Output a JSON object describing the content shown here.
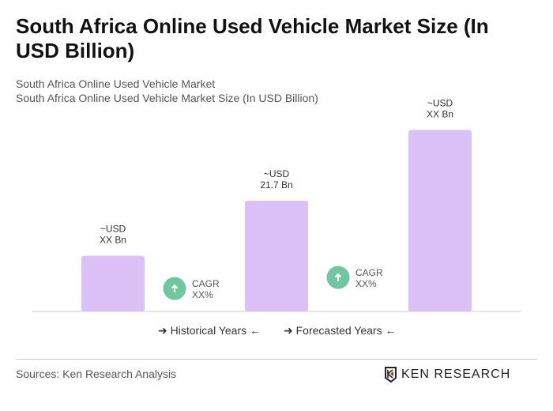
{
  "title": "South Africa Online Used Vehicle Market Size (In USD Billion)",
  "subtitle1": "South Africa Online Used Vehicle Market",
  "subtitle2": "South Africa Online Used Vehicle Market Size (In USD Billion)",
  "chart_data": {
    "type": "bar",
    "values": [
      10.9,
      21.7,
      35.6
    ],
    "data_labels": [
      [
        "~USD",
        "XX Bn"
      ],
      [
        "~USD",
        "21.7 Bn"
      ],
      [
        "~USD",
        "XX Bn"
      ]
    ],
    "bar_color": "#dcc1f7",
    "cagr": [
      {
        "label": "CAGR",
        "value": "XX%"
      },
      {
        "label": "CAGR",
        "value": "XX%"
      }
    ],
    "cagr_color": "#6fc7a1",
    "grid": false
  },
  "legend": {
    "historical": "Historical Years",
    "forecasted": "Forecasted Years"
  },
  "source": "Sources: Ken Research Analysis",
  "logo_text": "KEN RESEARCH"
}
